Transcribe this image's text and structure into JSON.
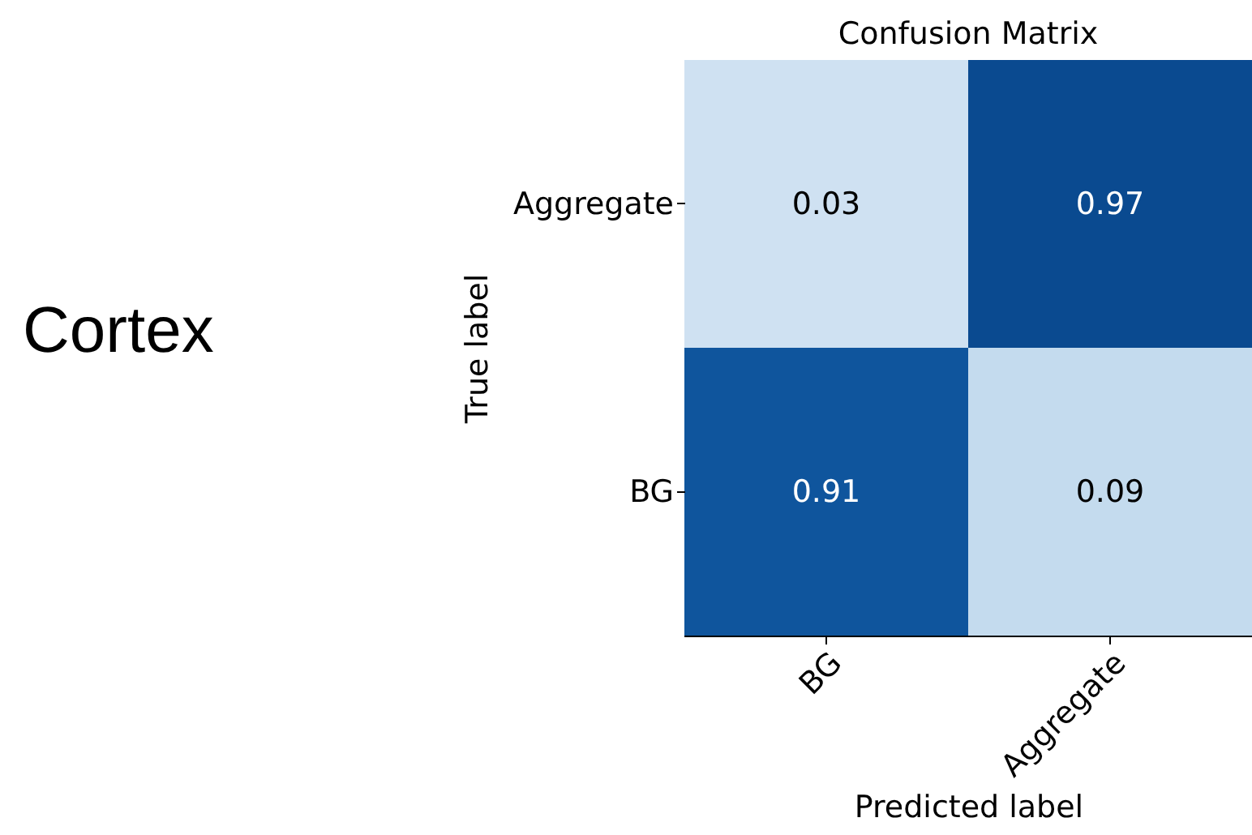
{
  "chart_data": {
    "type": "heatmap",
    "title": "Confusion Matrix",
    "xlabel": "Predicted label",
    "ylabel": "True label",
    "categories": [
      "BG",
      "Aggregate"
    ],
    "y_categories": [
      "Aggregate",
      "BG"
    ],
    "cells": [
      [
        0.03,
        0.97
      ],
      [
        0.91,
        0.09
      ]
    ],
    "data_labels": true,
    "annotations": [
      "Cortex"
    ]
  }
}
